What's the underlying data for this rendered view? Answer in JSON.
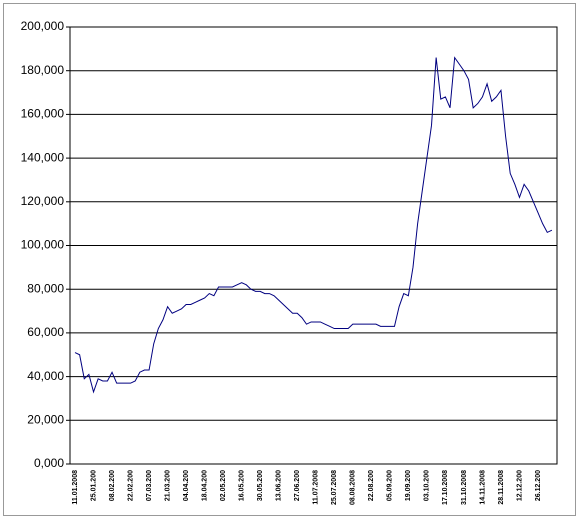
{
  "chart_data": {
    "type": "line",
    "color": "#000080",
    "grid": true,
    "ylim": [
      0,
      200000
    ],
    "yticks": [
      {
        "value": 0,
        "label": "0,000"
      },
      {
        "value": 20000,
        "label": "20,000"
      },
      {
        "value": 40000,
        "label": "40,000"
      },
      {
        "value": 60000,
        "label": "60,000"
      },
      {
        "value": 80000,
        "label": "80,000"
      },
      {
        "value": 100000,
        "label": "100,000"
      },
      {
        "value": 120000,
        "label": "120,000"
      },
      {
        "value": 140000,
        "label": "140,000"
      },
      {
        "value": 160000,
        "label": "160,000"
      },
      {
        "value": 180000,
        "label": "180,000"
      },
      {
        "value": 200000,
        "label": "200,000"
      }
    ],
    "categories": [
      "11.01.2008",
      null,
      null,
      null,
      "25.01.200",
      null,
      null,
      null,
      "08.02.200",
      null,
      null,
      null,
      "22.02.200",
      null,
      null,
      null,
      "07.03.200",
      null,
      null,
      null,
      "21.03.200",
      null,
      null,
      null,
      "04.04.200",
      null,
      null,
      null,
      "18.04.200",
      null,
      null,
      null,
      "02.05.200",
      null,
      null,
      null,
      "16.05.200",
      null,
      null,
      null,
      "30.05.200",
      null,
      null,
      null,
      "13.06.200",
      null,
      null,
      null,
      "27.06.200",
      null,
      null,
      null,
      "11.07.2008",
      null,
      null,
      null,
      "25.07.2008",
      null,
      null,
      null,
      "08.08.2008",
      null,
      null,
      null,
      "22.08.200",
      null,
      null,
      null,
      "05.09.200",
      null,
      null,
      null,
      "19.09.200",
      null,
      null,
      null,
      "03.10.200",
      null,
      null,
      null,
      "17.10.2008",
      null,
      null,
      null,
      "31.10.2008",
      null,
      null,
      null,
      "14.11.2008",
      null,
      null,
      null,
      "28.11.2008",
      null,
      null,
      null,
      "12.12.200",
      null,
      null,
      null,
      "26.12.200",
      null,
      null,
      null
    ],
    "values": [
      51000,
      50000,
      39000,
      41000,
      33000,
      39000,
      38000,
      38000,
      42000,
      37000,
      37000,
      37000,
      37000,
      38000,
      42000,
      43000,
      43000,
      55000,
      62000,
      66000,
      72000,
      69000,
      70000,
      71000,
      73000,
      73000,
      74000,
      75000,
      76000,
      78000,
      77000,
      81000,
      81000,
      81000,
      81000,
      82000,
      83000,
      82000,
      80000,
      79000,
      79000,
      78000,
      78000,
      77000,
      75000,
      73000,
      71000,
      69000,
      69000,
      67000,
      64000,
      65000,
      65000,
      65000,
      64000,
      63000,
      62000,
      62000,
      62000,
      62000,
      64000,
      64000,
      64000,
      64000,
      64000,
      64000,
      63000,
      63000,
      63000,
      63000,
      72000,
      78000,
      77000,
      90000,
      110000,
      125000,
      140000,
      155000,
      186000,
      167000,
      168000,
      163000,
      186000,
      183000,
      180000,
      176000,
      163000,
      165000,
      168000,
      174000,
      166000,
      168000,
      171000,
      150000,
      133000,
      128000,
      122000,
      128000,
      125000,
      120000,
      115000,
      110000,
      106000,
      107000
    ]
  }
}
